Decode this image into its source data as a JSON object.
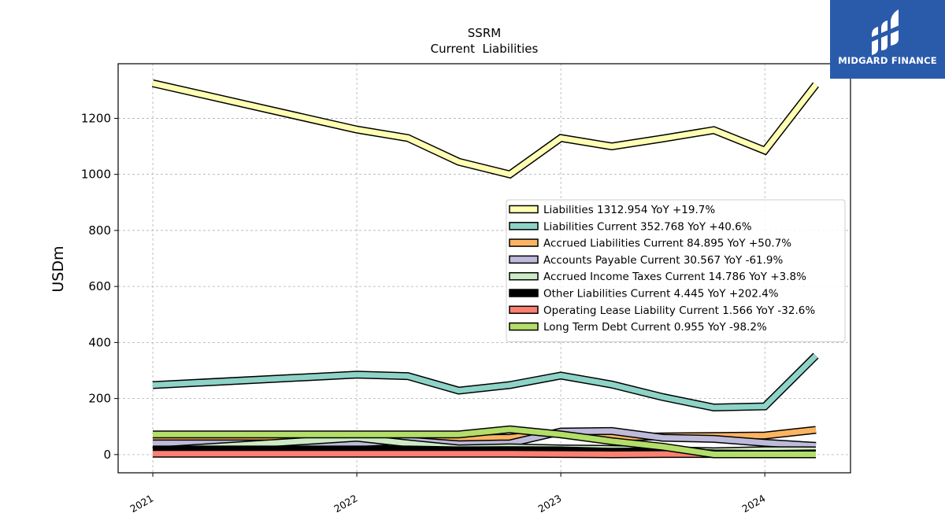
{
  "logo": {
    "text": "MIDGARD FINANCE"
  },
  "chart_data": {
    "type": "line",
    "title": "SSRM",
    "subtitle": "Current  Liabilities",
    "ylabel": "USDm",
    "xlabel": "",
    "ylim": [
      -65,
      1395
    ],
    "xlim": [
      2020.83,
      2024.42
    ],
    "yticks": [
      0,
      200,
      400,
      600,
      800,
      1000,
      1200
    ],
    "xticks": [
      {
        "value": 2021,
        "label": "2021"
      },
      {
        "value": 2022,
        "label": "2022"
      },
      {
        "value": 2023,
        "label": "2023"
      },
      {
        "value": 2024,
        "label": "2024"
      }
    ],
    "grid": true,
    "legend_position": "center-right",
    "series": [
      {
        "name": "Liabilities  1312.954 YoY +19.7%",
        "color": "#ffffb3",
        "x": [
          2021.0,
          2022.0,
          2022.25,
          2022.5,
          2022.75,
          2023.0,
          2023.25,
          2023.5,
          2023.75,
          2024.0,
          2024.25
        ],
        "y": [
          1325,
          1160,
          1130,
          1045,
          1000,
          1130,
          1100,
          1128,
          1158,
          1085,
          1320
        ]
      },
      {
        "name": "Liabilities Current  352.768 YoY +40.6%",
        "color": "#8dd3c7",
        "x": [
          2021.0,
          2022.0,
          2022.25,
          2022.5,
          2022.75,
          2023.0,
          2023.25,
          2023.5,
          2023.75,
          2024.0,
          2024.25
        ],
        "y": [
          248,
          285,
          280,
          228,
          248,
          282,
          250,
          205,
          168,
          172,
          353
        ]
      },
      {
        "name": "Accrued Liabilities Current  84.895 YoY +50.7%",
        "color": "#fdb462",
        "x": [
          2021.0,
          2022.0,
          2022.25,
          2022.5,
          2022.75,
          2023.0,
          2023.25,
          2023.5,
          2023.75,
          2024.0,
          2024.25
        ],
        "y": [
          60,
          62,
          62,
          58,
          60,
          78,
          62,
          65,
          66,
          68,
          88
        ]
      },
      {
        "name": "Accounts Payable Current  30.567 YoY -61.9%",
        "color": "#bebada",
        "x": [
          2021.0,
          2022.0,
          2022.25,
          2022.5,
          2022.75,
          2023.0,
          2023.25,
          2023.5,
          2023.75,
          2024.0,
          2024.25
        ],
        "y": [
          40,
          40,
          50,
          37,
          40,
          82,
          84,
          60,
          56,
          42,
          31
        ]
      },
      {
        "name": "Accrued Income Taxes Current  14.786 YoY +3.8%",
        "color": "#ccebc5",
        "x": [
          2021.0,
          2022.0,
          2022.25,
          2022.5,
          2022.75,
          2023.0,
          2023.25,
          2023.5,
          2023.75,
          2024.0,
          2024.25
        ],
        "y": [
          14,
          60,
          40,
          22,
          26,
          22,
          20,
          16,
          12,
          16,
          15
        ]
      },
      {
        "name": "Other Liabilities Current  4.445 YoY +202.4%",
        "color": "#000000",
        "x": [
          2021.0,
          2022.0,
          2022.25,
          2022.5,
          2022.75,
          2023.0,
          2023.25,
          2023.5,
          2023.75,
          2024.0,
          2024.25
        ],
        "y": [
          18,
          18,
          18,
          15,
          16,
          15,
          10,
          12,
          4,
          2,
          4
        ]
      },
      {
        "name": "Operating Lease Liability Current  1.566 YoY -32.6%",
        "color": "#fb8072",
        "x": [
          2021.0,
          2022.0,
          2022.25,
          2022.5,
          2022.75,
          2023.0,
          2023.25,
          2023.5,
          2023.75,
          2024.0,
          2024.25
        ],
        "y": [
          3,
          3,
          3,
          3,
          3,
          2,
          1,
          2,
          2,
          2,
          1.6
        ]
      },
      {
        "name": "Long Term Debt Current  0.955 YoY -98.2%",
        "color": "#b3de69",
        "x": [
          2021.0,
          2022.0,
          2022.25,
          2022.5,
          2022.75,
          2023.0,
          2023.25,
          2023.5,
          2023.75,
          2024.0,
          2024.25
        ],
        "y": [
          72,
          72,
          72,
          72,
          90,
          72,
          48,
          28,
          1,
          1,
          1
        ]
      }
    ]
  }
}
